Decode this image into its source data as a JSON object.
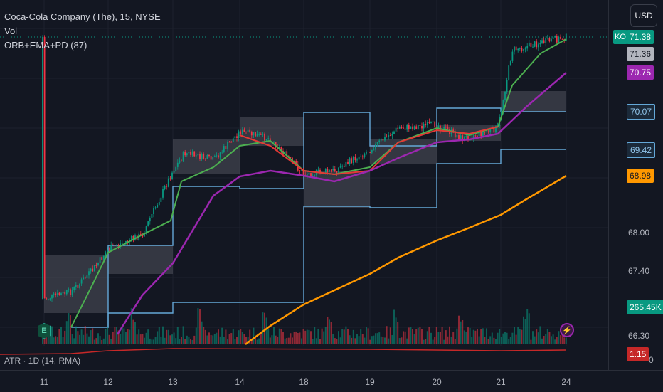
{
  "legend": {
    "title": "Coca-Cola Company (The), 15, NYSE",
    "vol_label": "Vol",
    "indicator_label": "ORB+EMA+PD (87)"
  },
  "currency_button": "USD",
  "price_scale": {
    "ticks": [
      "68.00",
      "67.40",
      "66.30"
    ],
    "tags": [
      {
        "id": "symbol",
        "label": "KO"
      },
      {
        "id": "last",
        "text": "71.38",
        "bg": "#089981",
        "fg": "#ffffff"
      },
      {
        "id": "prev-close",
        "text": "71.36",
        "bg": "#b2b5be",
        "fg": "#131722"
      },
      {
        "id": "ema-purple",
        "text": "70.75",
        "bg": "#9c27b0",
        "fg": "#ffffff"
      },
      {
        "id": "or-high",
        "text": "70.07",
        "bg": "#1b2a3a",
        "fg": "#90c4ea",
        "border": "#64a8d8"
      },
      {
        "id": "or-low",
        "text": "69.42",
        "bg": "#1b2a3a",
        "fg": "#90c4ea",
        "border": "#64a8d8"
      },
      {
        "id": "ema-orange",
        "text": "68.98",
        "bg": "#ff9800",
        "fg": "#131722"
      },
      {
        "id": "volume",
        "text": "265.45K",
        "bg": "#089981",
        "fg": "#ffffff"
      },
      {
        "id": "atr",
        "text": "1.15",
        "bg": "#c62828",
        "fg": "#ffffff"
      }
    ],
    "atr_axis_zero": "0"
  },
  "atr_pane": {
    "label": "ATR · 1D (14, RMA)"
  },
  "time_axis": [
    "11",
    "12",
    "13",
    "14",
    "18",
    "19",
    "20",
    "21",
    "24"
  ],
  "badges": {
    "earnings": "E",
    "lightning": "⚡"
  },
  "colors": {
    "background": "#131722",
    "up": "#089981",
    "down": "#f23645",
    "ema_fast": "#4caf50",
    "ema_slow": "#9c27b0",
    "ema_long": "#ff9800",
    "ema_red": "#e53935",
    "opening_range": "#64a8d8"
  }
}
